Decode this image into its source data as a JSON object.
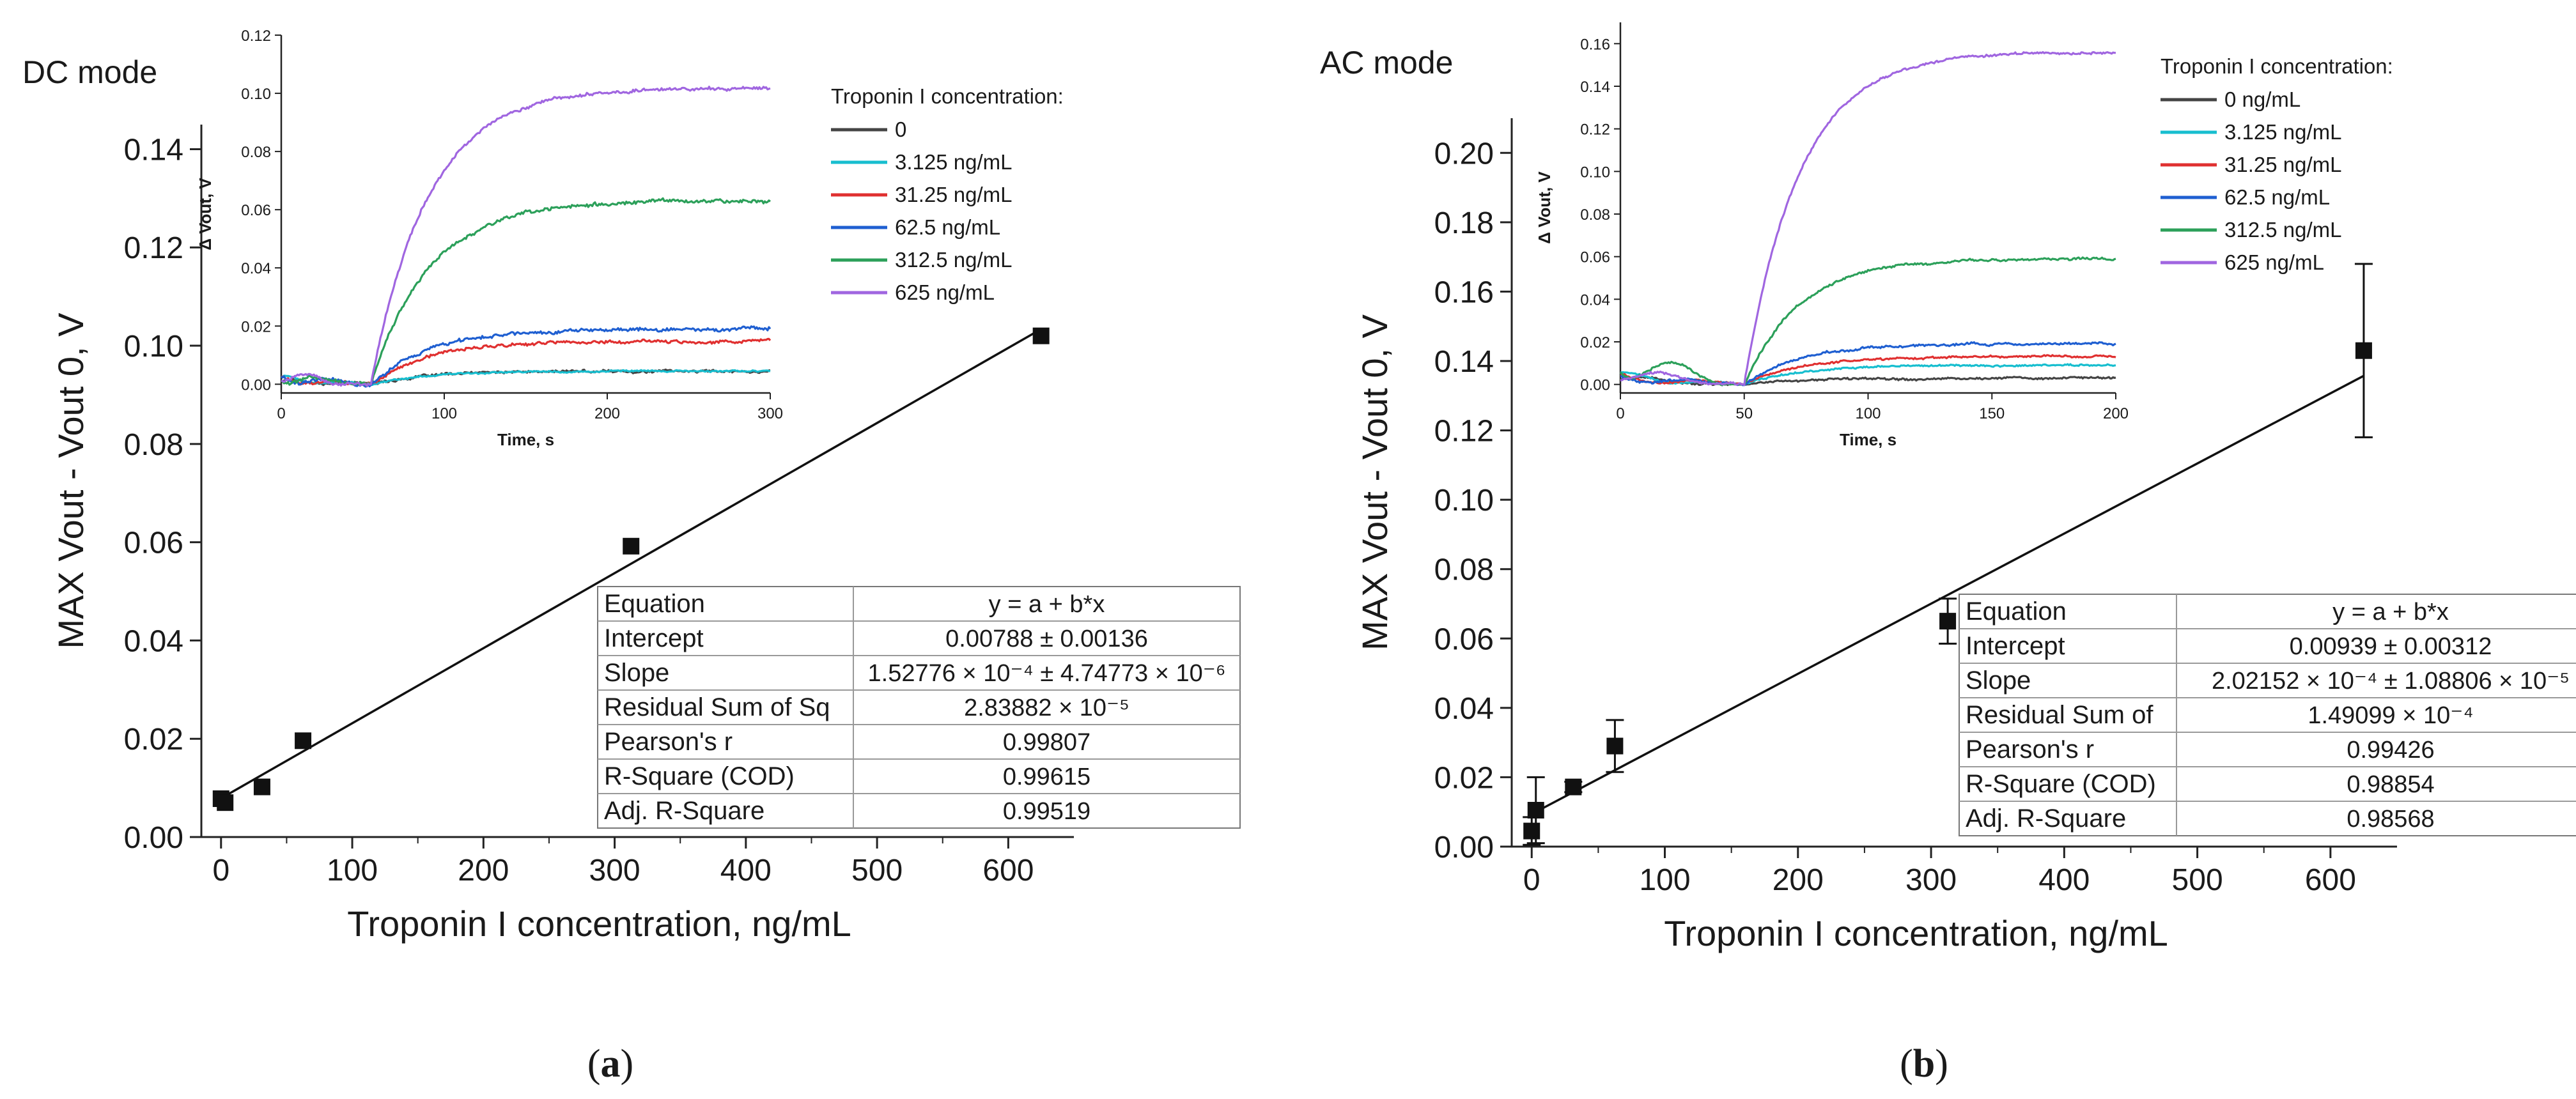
{
  "chart_data": [
    {
      "id": "a",
      "type": "scatter",
      "panel_label": "a",
      "mode_label": "DC mode",
      "xlabel": "Troponin I concentration, ng/mL",
      "ylabel": "MAX Vout - Vout 0, V",
      "xlim": [
        -15,
        650
      ],
      "ylim": [
        0,
        0.145
      ],
      "x_ticks": [
        0,
        100,
        200,
        300,
        400,
        500,
        600
      ],
      "x_tick_labels": [
        "0",
        "100",
        "200",
        "300",
        "400",
        "500",
        "600"
      ],
      "y_ticks": [
        0,
        0.02,
        0.04,
        0.06,
        0.08,
        0.1,
        0.12,
        0.14
      ],
      "y_tick_labels": [
        "0.00",
        "0.02",
        "0.04",
        "0.06",
        "0.08",
        "0.10",
        "0.12",
        "0.14"
      ],
      "points": [
        {
          "x": 0,
          "y": 0.0078,
          "err": 0
        },
        {
          "x": 3.125,
          "y": 0.007,
          "err": 0
        },
        {
          "x": 31.25,
          "y": 0.0102,
          "err": 0
        },
        {
          "x": 62.5,
          "y": 0.0196,
          "err": 0
        },
        {
          "x": 312.5,
          "y": 0.0592,
          "err": 0
        },
        {
          "x": 625,
          "y": 0.102,
          "err": 0
        }
      ],
      "fit": {
        "intercept": 0.00788,
        "slope": 0.000152776,
        "x_range": [
          0,
          625
        ]
      },
      "fit_table": [
        [
          "Equation",
          "y = a + b*x"
        ],
        [
          "Intercept",
          "0.00788 ± 0.00136"
        ],
        [
          "Slope",
          "1.52776 × 10⁻⁴ ± 4.74773 × 10⁻⁶"
        ],
        [
          "Residual Sum of Sq",
          "2.83882 × 10⁻⁵"
        ],
        [
          "Pearson's r",
          "0.99807"
        ],
        [
          "R-Square (COD)",
          "0.99615"
        ],
        [
          "Adj. R-Square",
          "0.99519"
        ]
      ],
      "inset": {
        "type": "line",
        "xlabel": "Time, s",
        "ylabel": "Δ Vout, V",
        "xlim": [
          0,
          300
        ],
        "ylim": [
          -0.003,
          0.12
        ],
        "x_ticks": [
          0,
          100,
          200,
          300
        ],
        "x_tick_labels": [
          "0",
          "100",
          "200",
          "300"
        ],
        "y_ticks": [
          0,
          0.02,
          0.04,
          0.06,
          0.08,
          0.1,
          0.12
        ],
        "y_tick_labels": [
          "0.00",
          "0.02",
          "0.04",
          "0.06",
          "0.08",
          "0.10",
          "0.12"
        ],
        "legend_title": "Troponin I concentration:",
        "onset": 55,
        "tau": 35,
        "series": [
          {
            "name": "0",
            "color": "#444444",
            "plateau": 0.0045,
            "noise": 0.0006,
            "pre": 0.002
          },
          {
            "name": "3.125 ng/mL",
            "color": "#17becf",
            "plateau": 0.0045,
            "noise": 0.0004,
            "pre": 0.003
          },
          {
            "name": "31.25 ng/mL",
            "color": "#e03030",
            "plateau": 0.0148,
            "noise": 0.0008,
            "pre": 0.003
          },
          {
            "name": "62.5 ng/mL",
            "color": "#1f5fd1",
            "plateau": 0.019,
            "noise": 0.0009,
            "pre": 0.004
          },
          {
            "name": "312.5 ng/mL",
            "color": "#2ca05a",
            "plateau": 0.063,
            "noise": 0.0009,
            "pre": 0.004
          },
          {
            "name": "625 ng/mL",
            "color": "#a066e0",
            "plateau": 0.102,
            "noise": 0.0008,
            "pre": 0.005
          }
        ]
      }
    },
    {
      "id": "b",
      "type": "scatter",
      "panel_label": "b",
      "mode_label": "AC mode",
      "xlabel": "Troponin I concentration, ng/mL",
      "ylabel": "MAX Vout - Vout 0, V",
      "xlim": [
        -15,
        650
      ],
      "ylim": [
        0,
        0.21
      ],
      "x_ticks": [
        0,
        100,
        200,
        300,
        400,
        500,
        600
      ],
      "x_tick_labels": [
        "0",
        "100",
        "200",
        "300",
        "400",
        "500",
        "600"
      ],
      "y_ticks": [
        0,
        0.02,
        0.04,
        0.06,
        0.08,
        0.1,
        0.12,
        0.14,
        0.16,
        0.18,
        0.2
      ],
      "y_tick_labels": [
        "0.00",
        "0.02",
        "0.04",
        "0.06",
        "0.08",
        "0.10",
        "0.12",
        "0.14",
        "0.16",
        "0.18",
        "0.20"
      ],
      "points": [
        {
          "x": 0,
          "y": 0.0045,
          "err": 0.004
        },
        {
          "x": 3.125,
          "y": 0.0105,
          "err": 0.0095
        },
        {
          "x": 31.25,
          "y": 0.0172,
          "err": 0.0015
        },
        {
          "x": 62.5,
          "y": 0.029,
          "err": 0.0075
        },
        {
          "x": 312.5,
          "y": 0.065,
          "err": 0.0065
        },
        {
          "x": 625,
          "y": 0.143,
          "err": 0.025
        }
      ],
      "fit": {
        "intercept": 0.00939,
        "slope": 0.000202152,
        "x_range": [
          0,
          625
        ]
      },
      "fit_table": [
        [
          "Equation",
          "y = a + b*x"
        ],
        [
          "Intercept",
          "0.00939 ± 0.00312"
        ],
        [
          "Slope",
          "2.02152 × 10⁻⁴ ± 1.08806 × 10⁻⁵"
        ],
        [
          "Residual Sum of",
          "1.49099 × 10⁻⁴"
        ],
        [
          "Pearson's r",
          "0.99426"
        ],
        [
          "R-Square (COD)",
          "0.98854"
        ],
        [
          "Adj. R-Square",
          "0.98568"
        ]
      ],
      "inset": {
        "type": "line",
        "xlabel": "Time, s",
        "ylabel": "Δ Vout, V",
        "xlim": [
          0,
          200
        ],
        "ylim": [
          -0.004,
          0.17
        ],
        "x_ticks": [
          0,
          50,
          100,
          150,
          200
        ],
        "x_tick_labels": [
          "0",
          "50",
          "100",
          "150",
          "200"
        ],
        "y_ticks": [
          0,
          0.02,
          0.04,
          0.06,
          0.08,
          0.1,
          0.12,
          0.14,
          0.16
        ],
        "y_tick_labels": [
          "0.00",
          "0.02",
          "0.04",
          "0.06",
          "0.08",
          "0.10",
          "0.12",
          "0.14",
          "0.16"
        ],
        "legend_title": "Troponin I concentration:",
        "onset": 50,
        "tau": 22,
        "series": [
          {
            "name": "0 ng/mL",
            "color": "#444444",
            "plateau": 0.003,
            "noise": 0.0007,
            "pre": 0.004
          },
          {
            "name": "3.125 ng/mL",
            "color": "#17becf",
            "plateau": 0.009,
            "noise": 0.0006,
            "pre": 0.006
          },
          {
            "name": "31.25 ng/mL",
            "color": "#e03030",
            "plateau": 0.013,
            "noise": 0.0007,
            "pre": 0.005
          },
          {
            "name": "62.5 ng/mL",
            "color": "#1f5fd1",
            "plateau": 0.019,
            "noise": 0.0008,
            "pre": 0.006
          },
          {
            "name": "312.5 ng/mL",
            "color": "#2ca05a",
            "plateau": 0.059,
            "noise": 0.0008,
            "pre": 0.018
          },
          {
            "name": "625 ng/mL",
            "color": "#a066e0",
            "plateau": 0.156,
            "noise": 0.0008,
            "pre": 0.008
          }
        ]
      }
    }
  ]
}
